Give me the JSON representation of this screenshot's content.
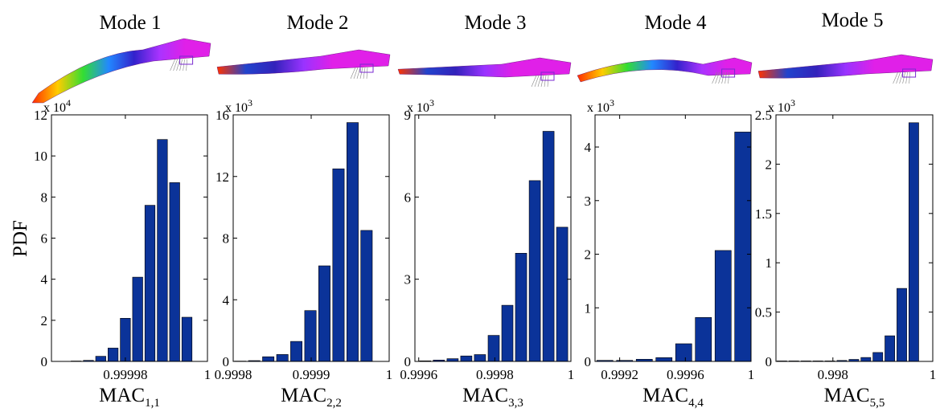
{
  "figure": {
    "ylabel": "PDF",
    "bar_color": "#0b3399",
    "mesh_colors": {
      "rainbow": [
        "#ff2d00",
        "#ffcc00",
        "#33dd33",
        "#2288ff",
        "#3322cc",
        "#aa33ff"
      ],
      "body": "#e020e8",
      "top": "#c013c8"
    }
  },
  "chart_data": [
    {
      "type": "bar",
      "title": "Mode 1",
      "xlabel": "MAC",
      "xlabel_sub": "1,1",
      "ylabel": "PDF",
      "multiplier": "x 10",
      "multiplier_exp": "4",
      "xlim": [
        0.999962,
        1.0
      ],
      "ylim": [
        0,
        12
      ],
      "xticks": [
        0.99998,
        1.0
      ],
      "xtick_labels": [
        "0.99998",
        "1"
      ],
      "yticks": [
        0,
        2,
        4,
        6,
        8,
        10,
        12
      ],
      "ytick_labels": [
        "0",
        "2",
        "4",
        "6",
        "8",
        "10",
        "12"
      ],
      "x": [
        0.999968,
        0.999971,
        0.999974,
        0.999977,
        0.99998,
        0.999983,
        0.999986,
        0.999989,
        0.999992,
        0.999995,
        0.999998
      ],
      "values": [
        0.02,
        0.05,
        0.25,
        0.65,
        2.1,
        4.1,
        7.6,
        10.8,
        8.7,
        2.15,
        0
      ],
      "bin_width": 3e-06
    },
    {
      "type": "bar",
      "title": "Mode 2",
      "xlabel": "MAC",
      "xlabel_sub": "2,2",
      "ylabel": "PDF",
      "multiplier": "x 10",
      "multiplier_exp": "3",
      "xlim": [
        0.9998,
        1.0
      ],
      "ylim": [
        0,
        16
      ],
      "xticks": [
        0.9998,
        0.9999,
        1.0
      ],
      "xtick_labels": [
        "0.9998",
        "0.9999",
        "1"
      ],
      "yticks": [
        0,
        4,
        8,
        12,
        16
      ],
      "ytick_labels": [
        "0",
        "4",
        "8",
        "12",
        "16"
      ],
      "x": [
        0.999809,
        0.999827,
        0.999845,
        0.999863,
        0.999881,
        0.999899,
        0.999917,
        0.999935,
        0.999953,
        0.999971,
        0.999989
      ],
      "values": [
        0.02,
        0.05,
        0.3,
        0.45,
        1.3,
        3.3,
        6.2,
        12.5,
        15.5,
        8.5,
        0
      ],
      "bin_width": 1.8e-05
    },
    {
      "type": "bar",
      "title": "Mode 3",
      "xlabel": "MAC",
      "xlabel_sub": "3,3",
      "ylabel": "PDF",
      "multiplier": "x 10",
      "multiplier_exp": "3",
      "xlim": [
        0.99959,
        1.0
      ],
      "ylim": [
        0,
        9
      ],
      "xticks": [
        0.9996,
        0.9998,
        1.0
      ],
      "xtick_labels": [
        "0.9996",
        "0.9998",
        "1"
      ],
      "yticks": [
        0,
        3,
        6,
        9
      ],
      "ytick_labels": [
        "0",
        "3",
        "6",
        "9"
      ],
      "x": [
        0.999617,
        0.999653,
        0.999689,
        0.999725,
        0.999761,
        0.999797,
        0.999833,
        0.999869,
        0.999905,
        0.999941,
        0.999977
      ],
      "values": [
        0.02,
        0.05,
        0.1,
        0.2,
        0.25,
        0.95,
        2.05,
        3.95,
        6.6,
        8.4,
        4.9
      ],
      "bin_width": 3.6e-05
    },
    {
      "type": "bar",
      "title": "Mode 4",
      "xlabel": "MAC",
      "xlabel_sub": "4,4",
      "ylabel": "PDF",
      "multiplier": "x 10",
      "multiplier_exp": "3",
      "xlim": [
        0.99905,
        1.0
      ],
      "ylim": [
        0,
        4.6
      ],
      "xticks": [
        0.9992,
        0.9996,
        1.0
      ],
      "xtick_labels": [
        "0.9992",
        "0.9996",
        "1"
      ],
      "yticks": [
        0,
        1,
        2,
        3,
        4
      ],
      "ytick_labels": [
        "0",
        "1",
        "2",
        "3",
        "4"
      ],
      "x": [
        0.99911,
        0.99923,
        0.99935,
        0.99947,
        0.99959,
        0.99971,
        0.99983,
        0.99995
      ],
      "values": [
        0.02,
        0.02,
        0.04,
        0.07,
        0.33,
        0.82,
        2.07,
        4.28
      ],
      "bin_width": 0.00012
    },
    {
      "type": "bar",
      "title": "Mode 5",
      "xlabel": "MAC",
      "xlabel_sub": "5,5",
      "ylabel": "PDF",
      "multiplier": "x 10",
      "multiplier_exp": "3",
      "xlim": [
        0.99686,
        1.0
      ],
      "ylim": [
        0,
        2.5
      ],
      "xticks": [
        0.998,
        1.0
      ],
      "xtick_labels": [
        "0.998",
        "1"
      ],
      "yticks": [
        0,
        0.5,
        1,
        1.5,
        2,
        2.5
      ],
      "ytick_labels": [
        "0",
        "0.5",
        "1",
        "1.5",
        "2",
        "2.5"
      ],
      "x": [
        0.99698,
        0.99722,
        0.99746,
        0.9977,
        0.99794,
        0.99818,
        0.99842,
        0.99866,
        0.9989,
        0.99914,
        0.99938,
        0.99962,
        0.99986
      ],
      "values": [
        0.005,
        0.005,
        0.005,
        0.005,
        0.005,
        0.01,
        0.02,
        0.04,
        0.09,
        0.26,
        0.74,
        2.42,
        0
      ],
      "bin_width": 0.00024
    }
  ]
}
